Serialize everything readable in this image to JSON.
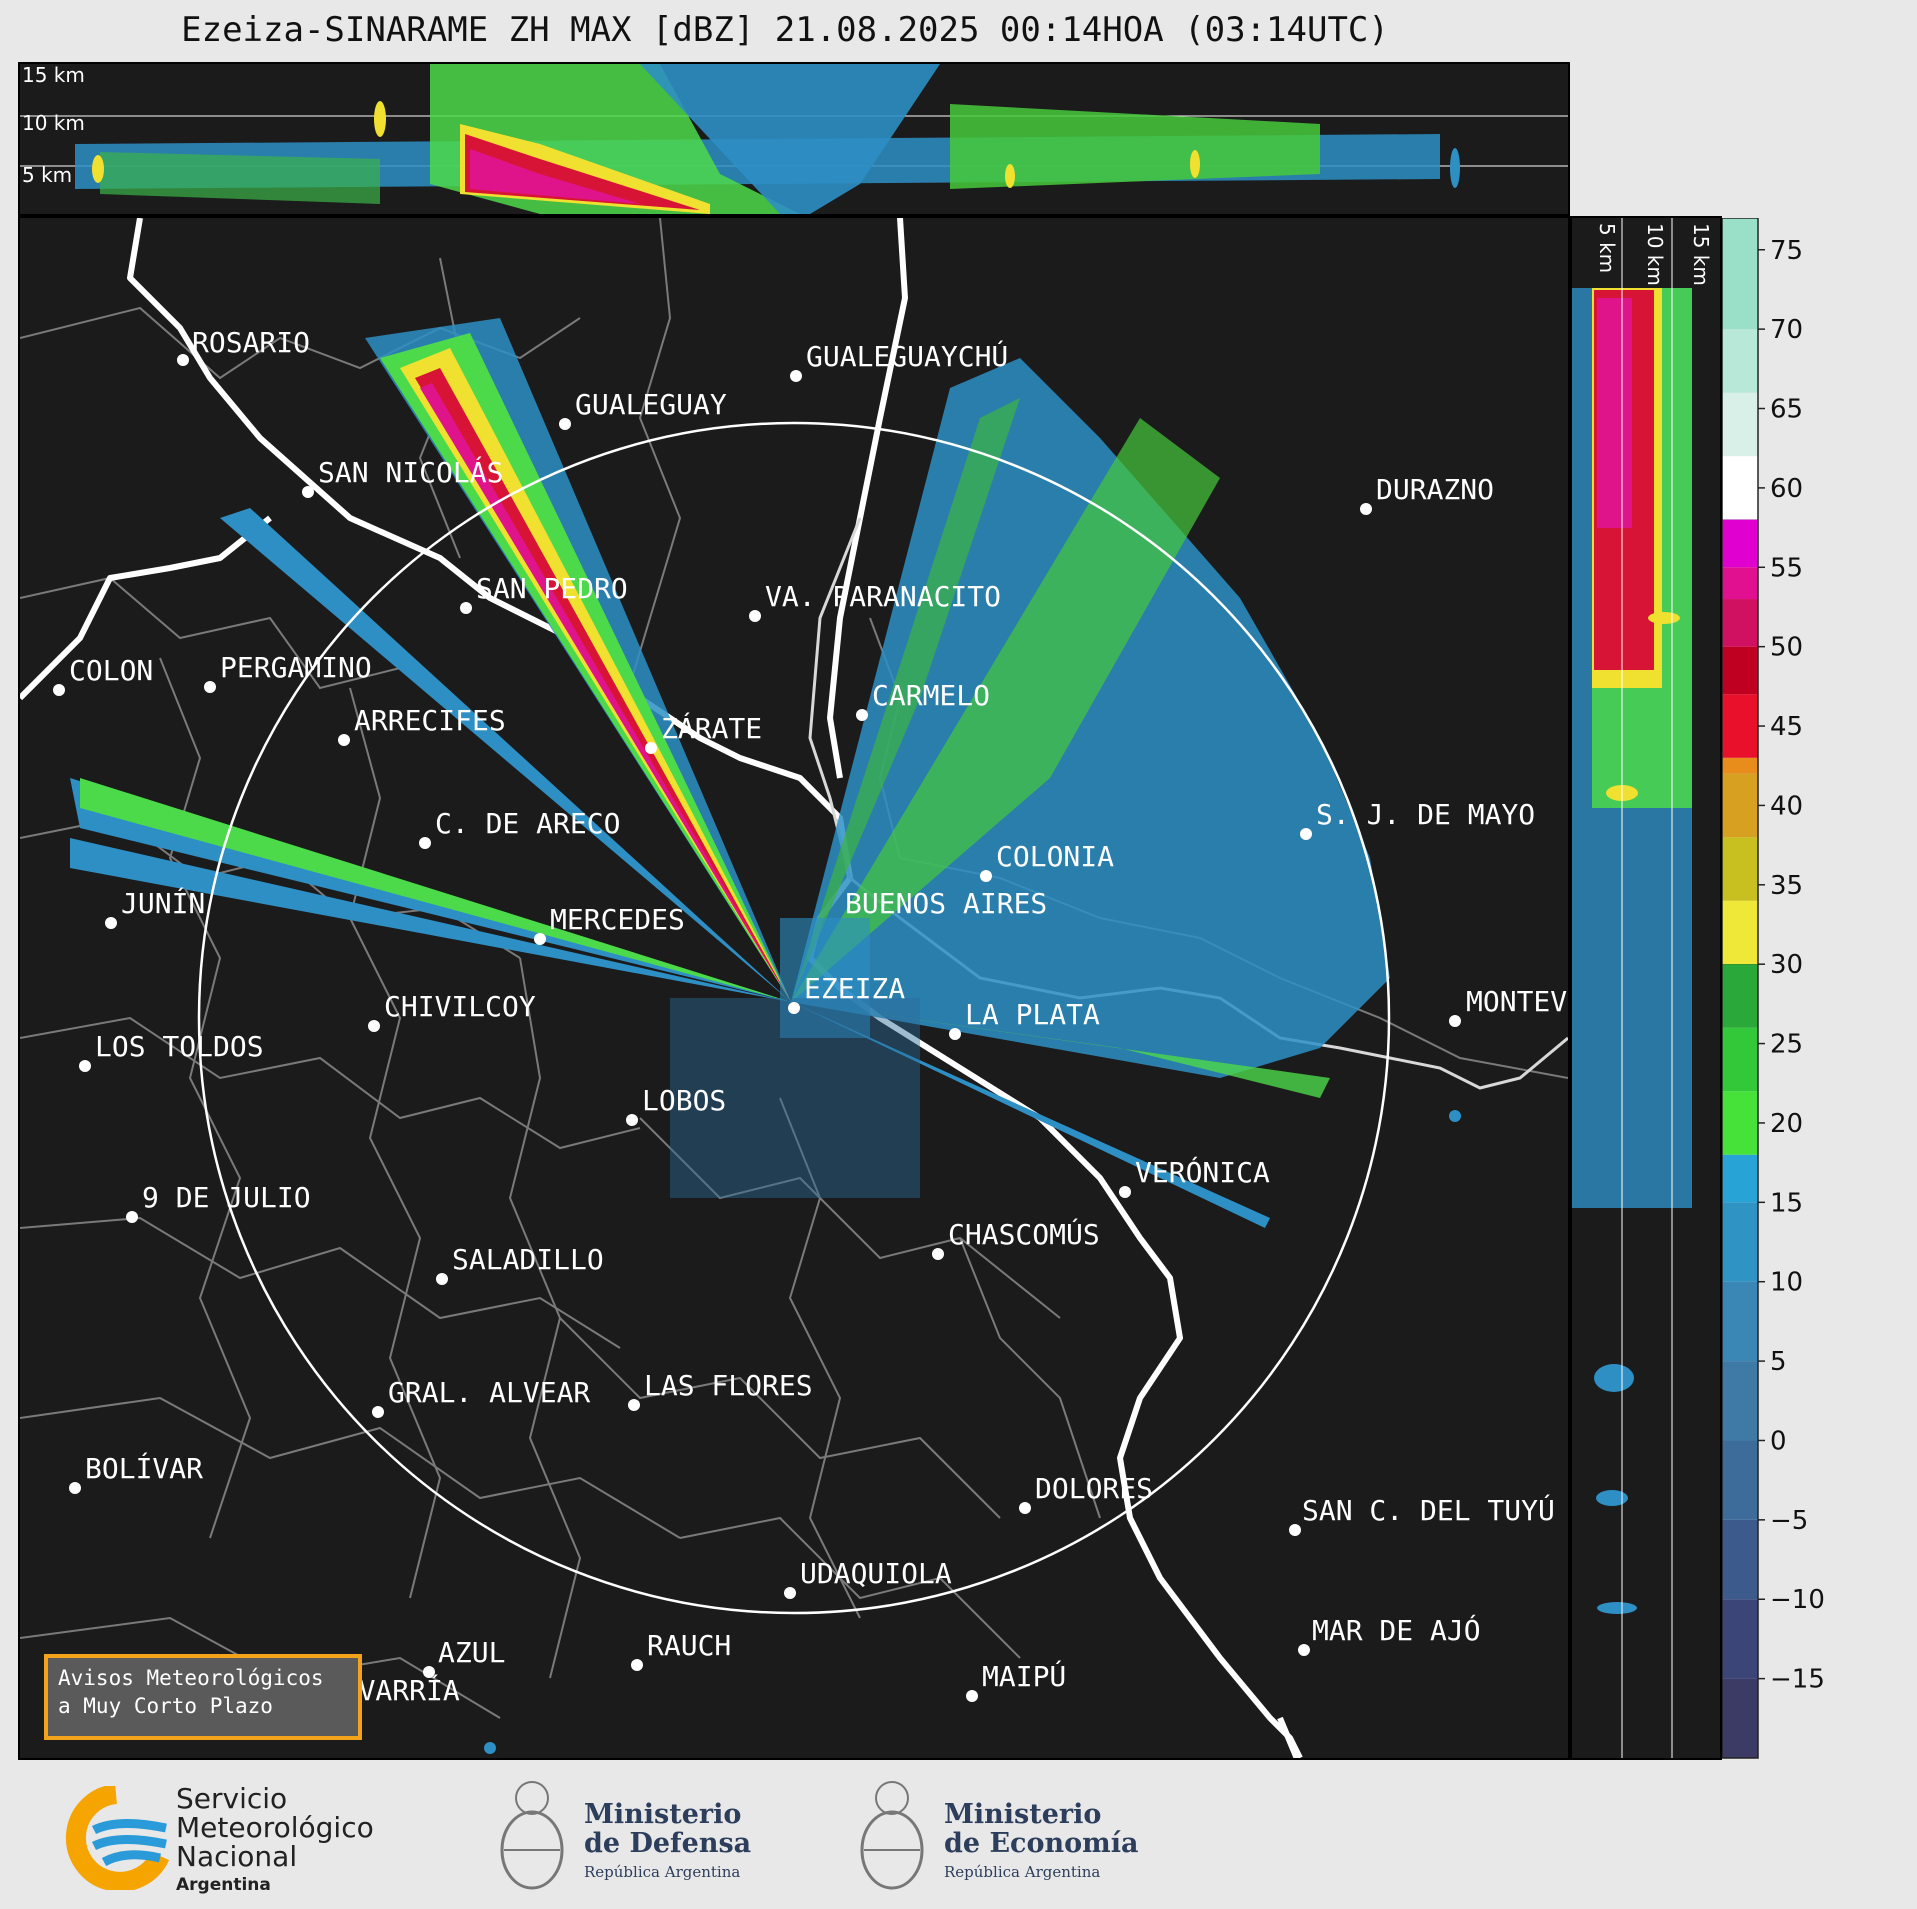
{
  "header": {
    "title": "Ezeiza-SINARAME ZH MAX [dBZ] 21.08.2025 00:14HOA (03:14UTC)"
  },
  "top_panel": {
    "altitude_labels": [
      "15 km",
      "10 km",
      "5 km"
    ]
  },
  "side_panel": {
    "altitude_labels": [
      "5 km",
      "10 km",
      "15 km"
    ]
  },
  "colorbar": {
    "ticks": [
      "75",
      "70",
      "65",
      "60",
      "55",
      "50",
      "45",
      "40",
      "35",
      "30",
      "25",
      "20",
      "15",
      "10",
      "5",
      "0",
      "−5",
      "−10",
      "−15"
    ],
    "range": [
      -20,
      77
    ]
  },
  "map": {
    "radar_site": "EZEIZA",
    "cities": [
      "ROSARIO",
      "GUALEGUAYCHÚ",
      "GUALEGUAY",
      "SAN NICOLÁS",
      "DURAZNO",
      "SAN PEDRO",
      "VA. PARANACITO",
      "COLON",
      "PERGAMINO",
      "CARMELO",
      "ARRECIFES",
      "ZÁRATE",
      "S. J. DE MAYO",
      "C. DE ARECO",
      "COLONIA",
      "JUNÍN",
      "BUENOS AIRES",
      "MERCEDES",
      "EZEIZA",
      "MONTEVIDEO",
      "CHIVILCOY",
      "LA PLATA",
      "LOS TOLDOS",
      "LOBOS",
      "VERÓNICA",
      "9 DE JULIO",
      "CHASCOMÚS",
      "SALADILLO",
      "GRAL. ALVEAR",
      "LAS FLORES",
      "BOLÍVAR",
      "DOLORES",
      "SAN C. DEL TUYÚ",
      "UDAQUIOLA",
      "MAR DE AJÓ",
      "RAUCH",
      "AZUL",
      "OLAVARRÍA",
      "MAIPÚ"
    ]
  },
  "notice": {
    "line1": "Avisos Meteorológicos",
    "line2": "a Muy Corto Plazo"
  },
  "logos": {
    "smn": {
      "line1": "Servicio",
      "line2": "Meteorológico",
      "line3": "Nacional",
      "line4": "Argentina"
    },
    "defensa": {
      "line1": "Ministerio",
      "line2": "de Defensa",
      "line3": "República Argentina"
    },
    "economia": {
      "line1": "Ministerio",
      "line2": "de Economía",
      "line3": "República Argentina"
    }
  },
  "colors": {
    "background": "#1b1b1b",
    "range_ring": "#ffffff",
    "coast": "#ffffff",
    "borders": "#7a7a7a",
    "notice_border": "#f3a31b"
  }
}
